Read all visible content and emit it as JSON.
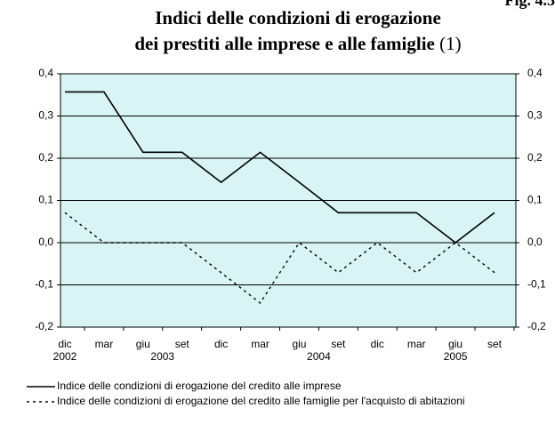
{
  "chart_data": {
    "type": "line",
    "figure_label": "Fig. 4.5",
    "title_lines": [
      "Indici delle condizioni di erogazione",
      "dei prestiti alle imprese e alle famiglie"
    ],
    "title_note": "(1)",
    "categories": [
      "dic",
      "mar",
      "giu",
      "set",
      "dic",
      "mar",
      "giu",
      "set",
      "dic",
      "mar",
      "giu",
      "set"
    ],
    "category_groups": [
      {
        "label": "2002",
        "start": 0,
        "end": 0
      },
      {
        "label": "2003",
        "start": 1,
        "end": 4
      },
      {
        "label": "2004",
        "start": 5,
        "end": 8
      },
      {
        "label": "2005",
        "start": 9,
        "end": 12
      }
    ],
    "series": [
      {
        "name": "Indice delle condizioni di erogazione del credito alle imprese",
        "color": "#000000",
        "dash": false,
        "values": [
          0.357,
          0.357,
          0.214,
          0.214,
          0.143,
          0.214,
          0.143,
          0.071,
          0.071,
          0.071,
          0.0,
          0.071
        ]
      },
      {
        "name": "Indice delle condizioni di erogazione del credito alle famiglie per l'acquisto di abitazioni",
        "color": "#000000",
        "dash": true,
        "values": [
          0.071,
          0.0,
          0.0,
          0.0,
          -0.071,
          -0.143,
          0.0,
          -0.071,
          0.0,
          -0.071,
          0.0,
          -0.071
        ]
      }
    ],
    "ylim": [
      -0.2,
      0.4
    ],
    "yticks": [
      {
        "value": -0.2,
        "label": "-0,2"
      },
      {
        "value": -0.1,
        "label": "-0,1"
      },
      {
        "value": 0.0,
        "label": "0,0"
      },
      {
        "value": 0.1,
        "label": "0,1"
      },
      {
        "value": 0.2,
        "label": "0,2"
      },
      {
        "value": 0.3,
        "label": "0,3"
      },
      {
        "value": 0.4,
        "label": "0,4"
      }
    ],
    "y2lim": [
      -0.2,
      0.4
    ],
    "y2ticks": [
      {
        "value": -0.2,
        "label": "-0,2"
      },
      {
        "value": -0.1,
        "label": "-0,1"
      },
      {
        "value": 0.0,
        "label": "0,0"
      },
      {
        "value": 0.1,
        "label": "0,1"
      },
      {
        "value": 0.2,
        "label": "0,2"
      },
      {
        "value": 0.3,
        "label": "0,3"
      },
      {
        "value": 0.4,
        "label": "0,4"
      }
    ],
    "grid": true,
    "plot_background": "#d8f4f4",
    "legend": "bottom"
  }
}
